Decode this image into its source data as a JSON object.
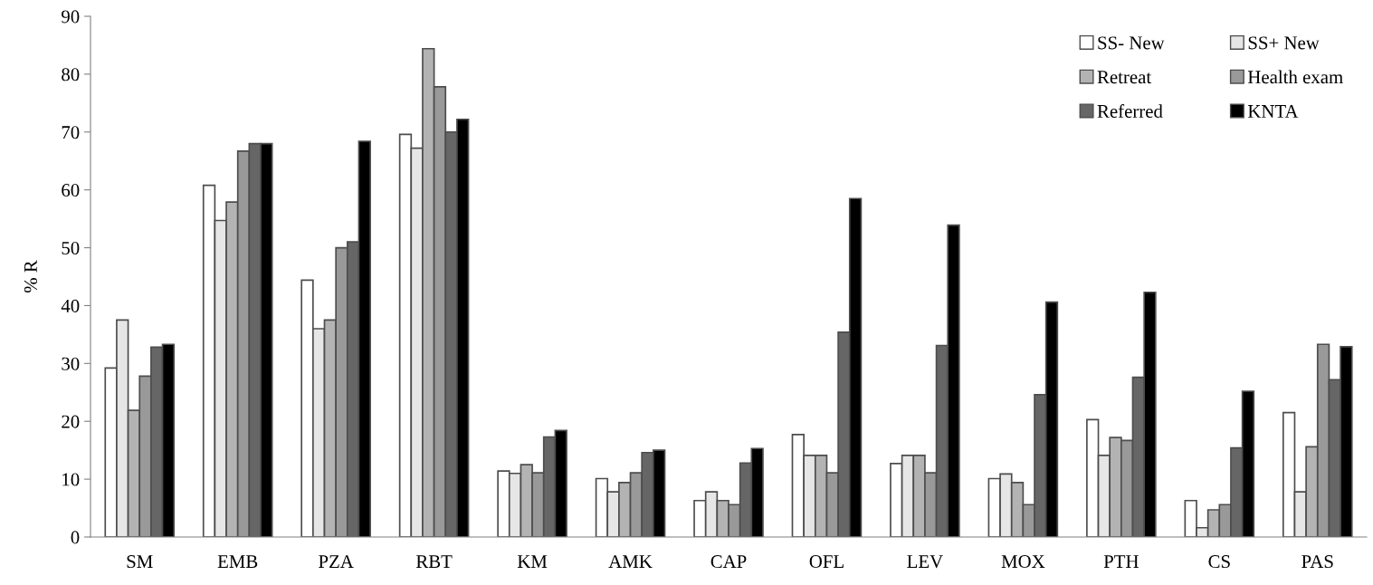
{
  "chart_data": {
    "type": "bar",
    "ylabel": "% R",
    "categories": [
      "SM",
      "EMB",
      "PZA",
      "RBT",
      "KM",
      "AMK",
      "CAP",
      "OFL",
      "LEV",
      "MOX",
      "PTH",
      "CS",
      "PAS"
    ],
    "series": [
      {
        "name": "SS- New",
        "color": "#ffffff",
        "values": [
          29.2,
          60.8,
          44.4,
          69.6,
          11.4,
          10.1,
          6.3,
          17.7,
          12.7,
          10.1,
          20.3,
          6.3,
          21.5
        ]
      },
      {
        "name": "SS+ New",
        "color": "#e6e6e6",
        "values": [
          37.5,
          54.7,
          36.0,
          67.2,
          11.0,
          7.8,
          7.8,
          14.1,
          14.1,
          10.9,
          14.1,
          1.6,
          7.8
        ]
      },
      {
        "name": "Retreat",
        "color": "#b3b3b3",
        "values": [
          21.9,
          57.9,
          37.5,
          84.4,
          12.5,
          9.4,
          6.3,
          14.1,
          14.1,
          9.4,
          17.2,
          4.7,
          15.6
        ]
      },
      {
        "name": "Health exam",
        "color": "#999999",
        "values": [
          27.8,
          66.7,
          50.0,
          77.8,
          11.1,
          11.1,
          5.6,
          11.1,
          11.1,
          5.6,
          16.7,
          5.6,
          33.3
        ]
      },
      {
        "name": "Referred",
        "color": "#666666",
        "values": [
          32.8,
          68.0,
          51.0,
          70.0,
          17.3,
          14.6,
          12.8,
          35.4,
          33.1,
          24.6,
          27.6,
          15.4,
          27.2
        ]
      },
      {
        "name": "KNTA",
        "color": "#000000",
        "values": [
          33.3,
          68.0,
          68.4,
          72.2,
          18.4,
          15.0,
          15.3,
          58.5,
          53.9,
          40.6,
          42.3,
          25.2,
          32.9
        ]
      }
    ],
    "ylim": [
      0,
      90
    ],
    "yticks": [
      0,
      10,
      20,
      30,
      40,
      50,
      60,
      70,
      80,
      90
    ],
    "grid": false,
    "legend": "top right"
  }
}
